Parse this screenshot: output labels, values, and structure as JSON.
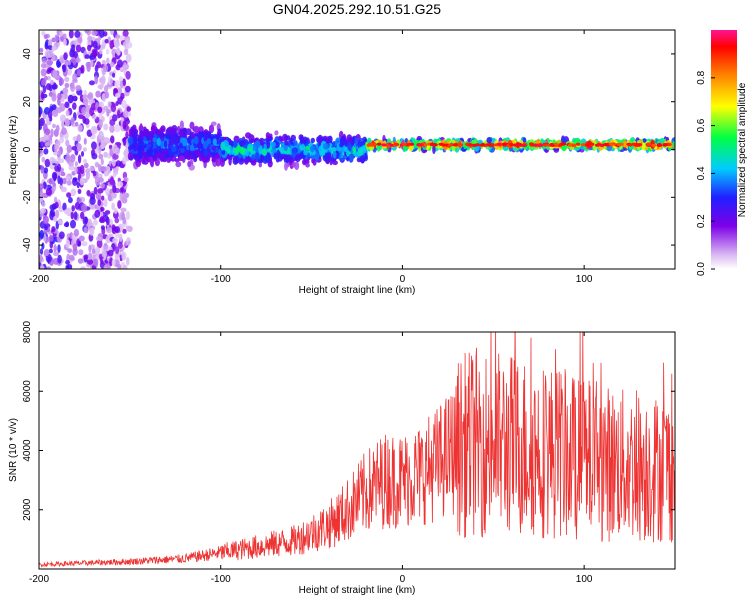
{
  "title": "GN04.2025.292.10.51.G25",
  "chart_data": [
    {
      "type": "heatmap",
      "name": "spectrogram",
      "xlabel": "Height of straight line (km)",
      "ylabel": "Frequency (Hz)",
      "xlim": [
        -200,
        150
      ],
      "ylim": [
        -50,
        50
      ],
      "xticks": [
        -200,
        -100,
        0,
        100
      ],
      "yticks": [
        -40,
        -20,
        0,
        20,
        40
      ],
      "colorbar": {
        "label": "Normalized spectral amplitude",
        "range": [
          0,
          1
        ],
        "ticks": [
          "0.0",
          "0.2",
          "0.4",
          "0.6",
          "0.8"
        ]
      },
      "regions": [
        {
          "x": [
            -200,
            -150
          ],
          "freq_center": 0,
          "freq_halfwidth": 50,
          "level": 0.15,
          "desc": "diffuse noise"
        },
        {
          "x": [
            -150,
            -100
          ],
          "freq_center": 2,
          "freq_halfwidth": 8,
          "level": 0.3
        },
        {
          "x": [
            -100,
            -20
          ],
          "freq_center": 0,
          "freq_halfwidth": 6,
          "level": 0.4
        },
        {
          "x": [
            -20,
            150
          ],
          "freq_center": 2,
          "freq_halfwidth": 2,
          "level": 0.8
        }
      ]
    },
    {
      "type": "line",
      "name": "snr",
      "xlabel": "Height of straight line (km)",
      "ylabel": "SNR (10 * v/v)",
      "xlim": [
        -200,
        150
      ],
      "ylim": [
        0,
        8000
      ],
      "xticks": [
        -200,
        -100,
        0,
        100
      ],
      "yticks": [
        2000,
        4000,
        6000,
        8000
      ],
      "color": "#ee3333",
      "envelope": {
        "x": [
          -200,
          -150,
          -120,
          -100,
          -80,
          -60,
          -40,
          -30,
          -20,
          -10,
          0,
          10,
          20,
          30,
          40,
          60,
          80,
          100,
          120,
          140,
          150
        ],
        "y": [
          150,
          250,
          350,
          550,
          750,
          950,
          1500,
          2000,
          2600,
          3000,
          3000,
          3200,
          3600,
          4100,
          4300,
          4200,
          4000,
          3700,
          3500,
          3400,
          3400
        ]
      }
    }
  ]
}
